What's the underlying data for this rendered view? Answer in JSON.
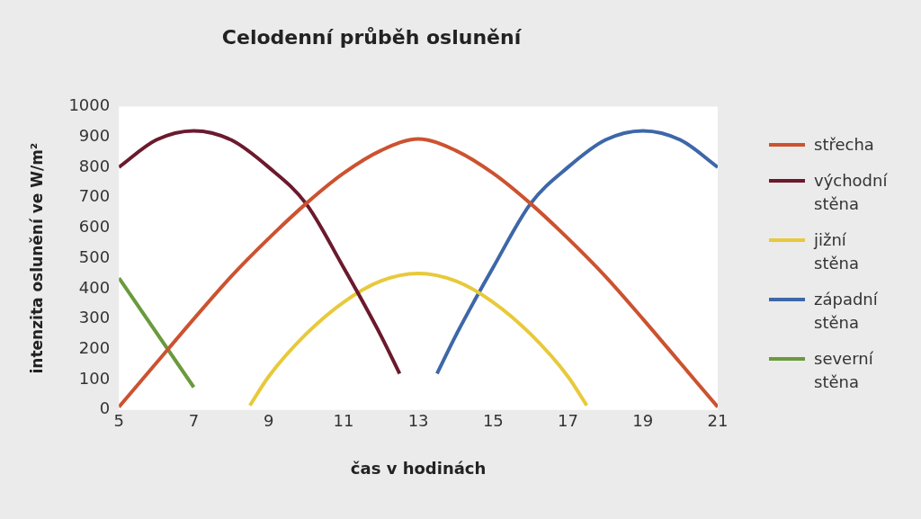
{
  "chart_data": {
    "type": "line",
    "title": "Celodenní průběh oslunění",
    "xlabel": "čas v hodinách",
    "ylabel": "intenzita oslunění ve W/m²",
    "xlim": [
      5,
      21
    ],
    "xticks": [
      5,
      7,
      9,
      11,
      13,
      15,
      17,
      19,
      21
    ],
    "ylim": [
      0,
      1000
    ],
    "yticks": [
      0,
      100,
      200,
      300,
      400,
      500,
      600,
      700,
      800,
      900,
      1000
    ],
    "grid": false,
    "legend": "right",
    "marker": "none",
    "line_style": "solid",
    "series": [
      {
        "name": "střecha",
        "color": "#cc5230",
        "x": [
          5,
          6,
          7,
          8,
          9,
          10,
          11,
          12,
          13,
          14,
          15,
          16,
          17,
          18,
          19,
          20,
          21
        ],
        "values": [
          10,
          155,
          300,
          440,
          565,
          680,
          780,
          855,
          893,
          855,
          780,
          680,
          565,
          440,
          300,
          155,
          10
        ]
      },
      {
        "name": "východní stěna",
        "color": "#6b1a2e",
        "x": [
          5,
          6,
          7,
          8,
          9,
          10,
          11,
          11.5,
          12,
          12.5
        ],
        "values": [
          800,
          890,
          920,
          890,
          800,
          680,
          470,
          360,
          245,
          120
        ]
      },
      {
        "name": "jižní stěna",
        "color": "#e8c93a",
        "x": [
          8.5,
          9,
          10,
          11,
          12,
          13,
          14,
          15,
          16,
          17,
          17.5
        ],
        "values": [
          15,
          110,
          250,
          355,
          425,
          450,
          425,
          355,
          250,
          110,
          15
        ]
      },
      {
        "name": "západní stěna",
        "color": "#3d67a8",
        "x": [
          13.5,
          14,
          14.5,
          15,
          16,
          17,
          18,
          19,
          20,
          21
        ],
        "values": [
          120,
          245,
          360,
          470,
          680,
          800,
          890,
          920,
          890,
          800
        ]
      },
      {
        "name": "severní stěna",
        "color": "#6a9a3e",
        "x": [
          5,
          7
        ],
        "values": [
          435,
          75
        ]
      }
    ]
  }
}
